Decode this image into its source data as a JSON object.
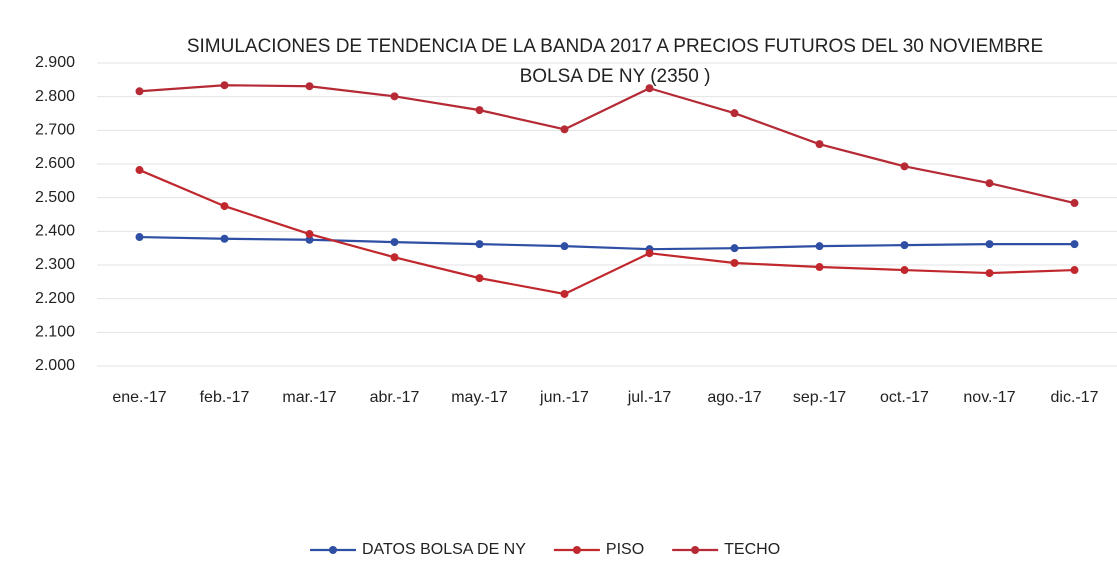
{
  "chart_data": {
    "type": "line",
    "title": "SIMULACIONES DE TENDENCIA DE LA BANDA 2017 A PRECIOS FUTUROS DEL 30 NOVIEMBRE BOLSA DE NY (2350 )",
    "categories": [
      "ene.-17",
      "feb.-17",
      "mar.-17",
      "abr.-17",
      "may.-17",
      "jun.-17",
      "jul.-17",
      "ago.-17",
      "sep.-17",
      "oct.-17",
      "nov.-17",
      "dic.-17"
    ],
    "series": [
      {
        "name": "DATOS BOLSA DE NY",
        "color": "#2e4fa3",
        "values": [
          2383,
          2378,
          2375,
          2368,
          2362,
          2356,
          2347,
          2350,
          2356,
          2359,
          2362,
          2362
        ]
      },
      {
        "name": "PISO",
        "color": "#c0282d",
        "values": [
          2582,
          2475,
          2392,
          2323,
          2261,
          2214,
          2335,
          2306,
          2294,
          2285,
          2276,
          2285
        ]
      },
      {
        "name": "TECHO",
        "color": "#b52a35",
        "values": [
          2816,
          2834,
          2831,
          2801,
          2760,
          2703,
          2825,
          2751,
          2659,
          2593,
          2543,
          2484
        ]
      }
    ],
    "ylim": [
      2000,
      2900
    ],
    "yticks": [
      {
        "value": 2000,
        "label": "2.000"
      },
      {
        "value": 2100,
        "label": "2.100"
      },
      {
        "value": 2200,
        "label": "2.200"
      },
      {
        "value": 2300,
        "label": "2.300"
      },
      {
        "value": 2400,
        "label": "2.400"
      },
      {
        "value": 2500,
        "label": "2.500"
      },
      {
        "value": 2600,
        "label": "2.600"
      },
      {
        "value": 2700,
        "label": "2.700"
      },
      {
        "value": 2800,
        "label": "2.800"
      },
      {
        "value": 2900,
        "label": "2.900"
      }
    ],
    "grid": true,
    "legend": "bottom"
  }
}
